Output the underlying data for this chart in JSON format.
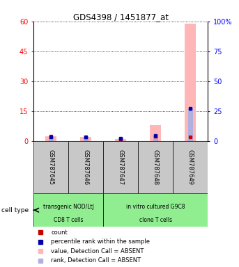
{
  "title": "GDS4398 / 1451877_at",
  "samples": [
    "GSM787645",
    "GSM787646",
    "GSM787647",
    "GSM787648",
    "GSM787649"
  ],
  "pink_bar_values": [
    2.5,
    2.0,
    1.0,
    8.0,
    59.0
  ],
  "blue_bar_values": [
    3.5,
    3.3,
    2.0,
    4.5,
    27.0
  ],
  "red_dot_values": [
    2.5,
    2.0,
    1.0,
    2.5,
    2.0
  ],
  "blue_dot_values": [
    3.5,
    3.3,
    2.0,
    4.5,
    27.0
  ],
  "left_ylim": [
    0,
    60
  ],
  "left_yticks": [
    0,
    15,
    30,
    45,
    60
  ],
  "right_ylim": [
    0,
    100
  ],
  "right_yticks": [
    0,
    25,
    50,
    75,
    100
  ],
  "group1_samples": [
    0,
    1
  ],
  "group2_samples": [
    2,
    3,
    4
  ],
  "group1_label_line1": "transgenic NOD/LtJ",
  "group1_label_line2": "CD8 T cells",
  "group2_label_line1": "in vitro cultured G9C8",
  "group2_label_line2": "clone T cells",
  "group1_bg": "#90ee90",
  "group2_bg": "#90ee90",
  "bar_bg": "#c8c8c8",
  "pink_color": "#ffb6b6",
  "blue_bar_color": "#b0b0e0",
  "red_color": "#cc0000",
  "dark_blue_color": "#0000aa",
  "legend_items": [
    "count",
    "percentile rank within the sample",
    "value, Detection Call = ABSENT",
    "rank, Detection Call = ABSENT"
  ],
  "legend_colors": [
    "#cc0000",
    "#0000aa",
    "#ffb6b6",
    "#b0b0e0"
  ]
}
